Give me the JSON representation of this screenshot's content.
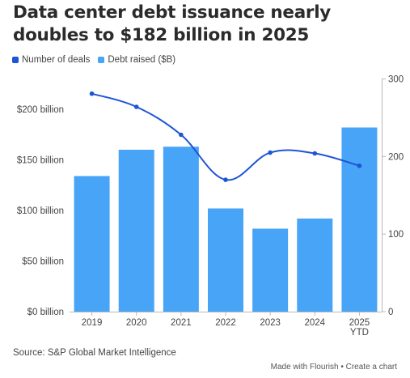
{
  "title": "Data center debt issuance nearly doubles to $182 billion in 2025",
  "legend": [
    {
      "label": "Number of deals",
      "color": "#1e55d6"
    },
    {
      "label": "Debt raised ($B)",
      "color": "#48a4f7"
    }
  ],
  "source": "Source: S&P Global Market Intelligence",
  "footer": {
    "made_with": "Made with Flourish",
    "separator": "•",
    "create": "Create a chart"
  },
  "chart_data": {
    "type": "bar",
    "categories": [
      "2019",
      "2020",
      "2021",
      "2022",
      "2023",
      "2024",
      "2025 YTD"
    ],
    "category_lines": [
      [
        "2019"
      ],
      [
        "2020"
      ],
      [
        "2021"
      ],
      [
        "2022"
      ],
      [
        "2023"
      ],
      [
        "2024"
      ],
      [
        "2025",
        "YTD"
      ]
    ],
    "series": [
      {
        "name": "Debt raised ($B)",
        "type": "bar",
        "axis": "left",
        "color": "#48a4f7",
        "values": [
          134,
          160,
          163,
          102,
          82,
          92,
          182
        ]
      },
      {
        "name": "Number of deals",
        "type": "line",
        "axis": "right",
        "color": "#1e55d6",
        "values": [
          281,
          264,
          228,
          170,
          205,
          204,
          188
        ]
      }
    ],
    "y_left": {
      "ylim": [
        0,
        230
      ],
      "ticks": [
        0,
        50,
        100,
        150,
        200
      ],
      "tick_labels": [
        "$0 billion",
        "$50 billion",
        "$100 billion",
        "$150 billion",
        "$200 billion"
      ]
    },
    "y_right": {
      "ylim": [
        0,
        300
      ],
      "ticks": [
        0,
        100,
        200,
        300
      ],
      "tick_labels": [
        "0",
        "100",
        "200",
        "300"
      ]
    },
    "grid": false,
    "legend_position": "top-left"
  }
}
